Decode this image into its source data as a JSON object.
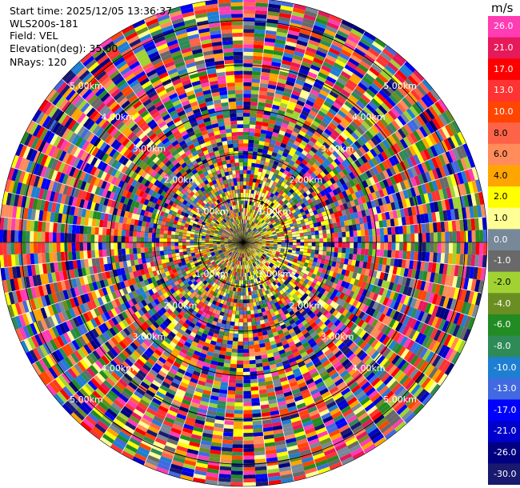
{
  "info": {
    "start_time": "Start time: 2025/12/05 13:36:37",
    "station": "WLS200s-181",
    "field": "Field: VEL",
    "elevation": "Elevation(deg): 35.00",
    "nrays": "NRays: 120"
  },
  "chart_data": {
    "type": "heatmap",
    "projection": "polar",
    "field": "VEL",
    "elevation_deg": 35.0,
    "n_rays": 120,
    "max_range_km": 5.5,
    "range_ring_labels": [
      "1.00km",
      "2.00km",
      "3.00km",
      "4.00km",
      "5.00km"
    ],
    "colorbar": {
      "unit": "m/s",
      "ticks": [
        "26.0",
        "21.0",
        "17.0",
        "13.0",
        "10.0",
        "8.0",
        "6.0",
        "4.0",
        "2.0",
        "1.0",
        "0.0",
        "-1.0",
        "-2.0",
        "-4.0",
        "-6.0",
        "-8.0",
        "-10.0",
        "-13.0",
        "-17.0",
        "-21.0",
        "-26.0",
        "-30.0"
      ],
      "colors": [
        "#FF3CB4",
        "#E6195A",
        "#FF0000",
        "#FF3333",
        "#FF4500",
        "#FF6347",
        "#FF8C5A",
        "#FFA500",
        "#FFFF00",
        "#FFFF96",
        "#778899",
        "#696969",
        "#A0D232",
        "#6B8E23",
        "#228B22",
        "#2E8B57",
        "#1E7FD2",
        "#4169E1",
        "#0000FF",
        "#0000CD",
        "#000080",
        "#191970"
      ]
    }
  }
}
